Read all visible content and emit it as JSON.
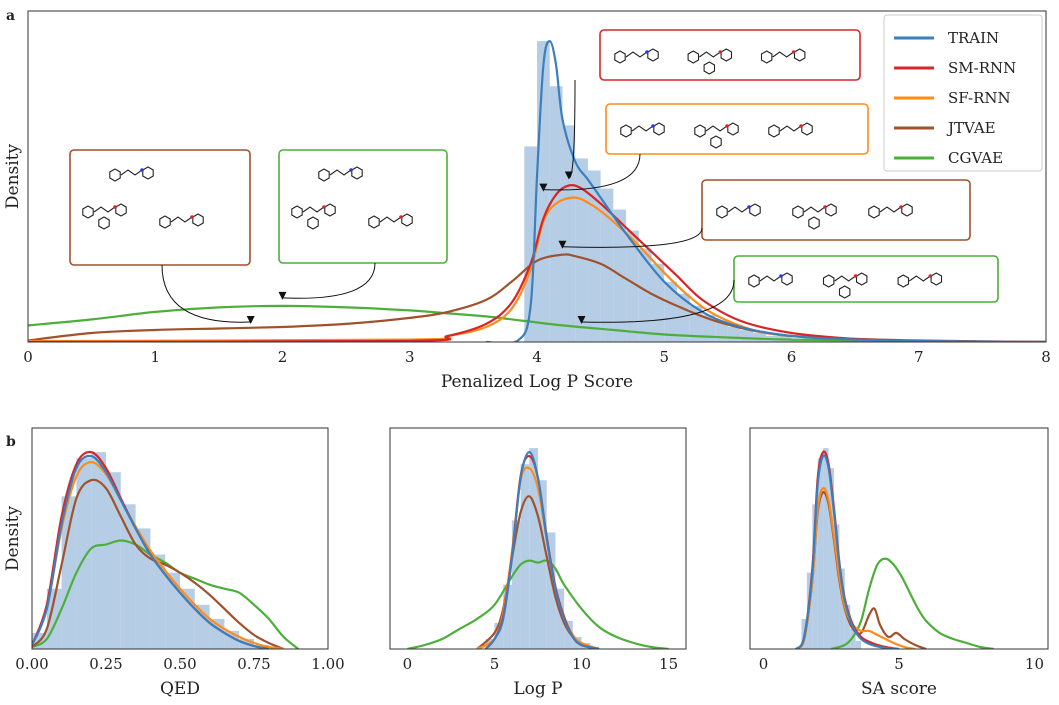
{
  "colors": {
    "TRAIN": "#3b7fbd",
    "SM-RNN": "#d62728",
    "SF-RNN": "#ff8c1a",
    "JTVAE": "#a0522d",
    "CGVAE": "#4caf3a",
    "hist": "#a9c4e2"
  },
  "panels": {
    "a": "a",
    "b": "b"
  },
  "legend": [
    {
      "name": "TRAIN",
      "color_key": "TRAIN"
    },
    {
      "name": "SM-RNN",
      "color_key": "SM-RNN"
    },
    {
      "name": "SF-RNN",
      "color_key": "SF-RNN"
    },
    {
      "name": "JTVAE",
      "color_key": "JTVAE"
    },
    {
      "name": "CGVAE",
      "color_key": "CGVAE"
    }
  ],
  "molecule_insets": [
    {
      "model": "SM-RNN",
      "color_key": "SM-RNN"
    },
    {
      "model": "SF-RNN",
      "color_key": "SF-RNN"
    },
    {
      "model": "JTVAE",
      "color_key": "JTVAE"
    },
    {
      "model": "CGVAE",
      "color_key": "CGVAE"
    },
    {
      "model": "JTVAE",
      "color_key": "JTVAE"
    },
    {
      "model": "CGVAE",
      "color_key": "CGVAE"
    }
  ],
  "chart_data": [
    {
      "id": "a",
      "type": "line",
      "xlabel": "Penalized Log P Score",
      "ylabel": "Density",
      "xlim": [
        0,
        8
      ],
      "ylim": [
        0,
        1.1
      ],
      "xticks": [
        0,
        1,
        2,
        3,
        4,
        5,
        6,
        7,
        8
      ],
      "show_yticks": false,
      "legend_position": "top-right",
      "histogram": {
        "bin_edges": [
          3.9,
          4.0,
          4.1,
          4.2,
          4.3,
          4.4,
          4.5,
          4.6,
          4.7,
          4.8,
          4.9,
          5.0,
          5.1,
          5.2,
          5.3,
          5.4,
          5.5,
          5.6,
          5.7,
          5.8,
          5.9,
          6.0,
          6.1,
          6.2,
          6.3,
          6.4,
          6.5
        ],
        "values": [
          0.65,
          1.0,
          0.85,
          0.72,
          0.61,
          0.57,
          0.51,
          0.44,
          0.37,
          0.31,
          0.26,
          0.2,
          0.16,
          0.12,
          0.09,
          0.07,
          0.05,
          0.04,
          0.03,
          0.02,
          0.02,
          0.01,
          0.01,
          0.01,
          0.01,
          0.01
        ]
      },
      "series": [
        {
          "name": "TRAIN",
          "x": [
            3.6,
            3.85,
            3.95,
            4.0,
            4.05,
            4.1,
            4.15,
            4.2,
            4.3,
            4.4,
            4.5,
            4.7,
            5.0,
            5.3,
            5.6,
            6.0,
            6.5,
            7.0,
            8.0
          ],
          "y": [
            0,
            0.005,
            0.12,
            0.55,
            0.92,
            1.0,
            0.92,
            0.74,
            0.6,
            0.54,
            0.48,
            0.36,
            0.2,
            0.1,
            0.05,
            0.02,
            0.008,
            0.003,
            0
          ]
        },
        {
          "name": "SM-RNN",
          "x": [
            0,
            3.0,
            3.3,
            3.6,
            3.8,
            3.95,
            4.05,
            4.15,
            4.25,
            4.35,
            4.5,
            4.7,
            4.9,
            5.1,
            5.3,
            5.6,
            6.0,
            6.5,
            7.0,
            8.0
          ],
          "y": [
            0,
            0.004,
            0.02,
            0.06,
            0.13,
            0.26,
            0.41,
            0.49,
            0.52,
            0.51,
            0.46,
            0.38,
            0.3,
            0.22,
            0.14,
            0.07,
            0.03,
            0.01,
            0.003,
            0
          ]
        },
        {
          "name": "SF-RNN",
          "x": [
            0,
            3.0,
            3.3,
            3.6,
            3.8,
            3.95,
            4.05,
            4.15,
            4.3,
            4.45,
            4.6,
            4.8,
            5.0,
            5.2,
            5.4,
            5.7,
            6.0,
            6.5,
            7.0,
            8.0
          ],
          "y": [
            0.003,
            0.008,
            0.02,
            0.05,
            0.11,
            0.24,
            0.4,
            0.46,
            0.48,
            0.45,
            0.4,
            0.32,
            0.23,
            0.15,
            0.09,
            0.04,
            0.02,
            0.008,
            0.003,
            0
          ]
        },
        {
          "name": "JTVAE",
          "x": [
            0,
            0.5,
            1.0,
            1.5,
            2.0,
            2.5,
            3.0,
            3.3,
            3.6,
            3.8,
            4.0,
            4.2,
            4.3,
            4.5,
            4.7,
            4.9,
            5.1,
            5.4,
            5.8,
            6.2,
            7.0,
            8.0
          ],
          "y": [
            0.005,
            0.03,
            0.04,
            0.045,
            0.05,
            0.06,
            0.08,
            0.1,
            0.14,
            0.2,
            0.27,
            0.29,
            0.285,
            0.26,
            0.21,
            0.16,
            0.12,
            0.07,
            0.03,
            0.015,
            0.005,
            0
          ]
        },
        {
          "name": "CGVAE",
          "x": [
            0,
            0.5,
            1.0,
            1.5,
            2.0,
            2.5,
            3.0,
            3.3,
            3.6,
            3.9,
            4.2,
            4.6,
            5.0,
            5.5,
            6.0,
            7.0,
            8.0
          ],
          "y": [
            0.055,
            0.075,
            0.1,
            0.115,
            0.12,
            0.115,
            0.105,
            0.095,
            0.085,
            0.07,
            0.055,
            0.04,
            0.025,
            0.015,
            0.008,
            0.003,
            0
          ]
        }
      ]
    },
    {
      "id": "b-qed",
      "type": "line",
      "xlabel": "QED",
      "ylabel": "Density",
      "xlim": [
        0,
        1
      ],
      "ylim": [
        0,
        1.1
      ],
      "xticks": [
        0,
        0.25,
        0.5,
        0.75,
        1.0
      ],
      "xtick_labels": [
        "0.00",
        "0.25",
        "0.50",
        "0.75",
        "1.00"
      ],
      "show_yticks": false,
      "histogram": {
        "bin_edges": [
          0.0,
          0.05,
          0.1,
          0.15,
          0.2,
          0.25,
          0.3,
          0.35,
          0.4,
          0.45,
          0.5,
          0.55,
          0.6,
          0.65,
          0.7,
          0.75,
          0.8
        ],
        "values": [
          0.08,
          0.3,
          0.76,
          0.95,
          0.98,
          0.88,
          0.72,
          0.6,
          0.47,
          0.38,
          0.3,
          0.22,
          0.15,
          0.09,
          0.05,
          0.02
        ]
      },
      "series": [
        {
          "name": "TRAIN",
          "x": [
            0,
            0.05,
            0.1,
            0.15,
            0.2,
            0.25,
            0.3,
            0.35,
            0.4,
            0.45,
            0.5,
            0.55,
            0.6,
            0.65,
            0.7,
            0.75,
            0.8
          ],
          "y": [
            0.02,
            0.2,
            0.62,
            0.9,
            0.96,
            0.88,
            0.74,
            0.6,
            0.47,
            0.37,
            0.28,
            0.2,
            0.13,
            0.08,
            0.04,
            0.015,
            0
          ]
        },
        {
          "name": "SM-RNN",
          "x": [
            0,
            0.05,
            0.1,
            0.15,
            0.2,
            0.25,
            0.3,
            0.35,
            0.4,
            0.45,
            0.5,
            0.55,
            0.6,
            0.65,
            0.7,
            0.75,
            0.8
          ],
          "y": [
            0.02,
            0.22,
            0.66,
            0.92,
            0.98,
            0.9,
            0.75,
            0.6,
            0.47,
            0.37,
            0.28,
            0.2,
            0.13,
            0.08,
            0.04,
            0.015,
            0
          ]
        },
        {
          "name": "SF-RNN",
          "x": [
            0,
            0.05,
            0.1,
            0.15,
            0.2,
            0.25,
            0.3,
            0.35,
            0.4,
            0.45,
            0.5,
            0.55,
            0.6,
            0.65,
            0.7,
            0.75,
            0.8,
            0.85
          ],
          "y": [
            0.02,
            0.2,
            0.6,
            0.86,
            0.93,
            0.87,
            0.74,
            0.61,
            0.49,
            0.39,
            0.3,
            0.22,
            0.15,
            0.1,
            0.06,
            0.03,
            0.01,
            0
          ]
        },
        {
          "name": "JTVAE",
          "x": [
            0,
            0.05,
            0.1,
            0.15,
            0.2,
            0.25,
            0.3,
            0.35,
            0.4,
            0.45,
            0.5,
            0.55,
            0.6,
            0.65,
            0.7,
            0.75,
            0.8,
            0.85
          ],
          "y": [
            0.01,
            0.1,
            0.42,
            0.75,
            0.84,
            0.8,
            0.66,
            0.52,
            0.45,
            0.42,
            0.38,
            0.33,
            0.27,
            0.2,
            0.13,
            0.07,
            0.03,
            0
          ]
        },
        {
          "name": "CGVAE",
          "x": [
            0,
            0.05,
            0.1,
            0.15,
            0.2,
            0.25,
            0.3,
            0.35,
            0.4,
            0.45,
            0.5,
            0.55,
            0.6,
            0.65,
            0.7,
            0.75,
            0.8,
            0.85,
            0.9
          ],
          "y": [
            0.01,
            0.05,
            0.2,
            0.38,
            0.5,
            0.52,
            0.54,
            0.52,
            0.47,
            0.43,
            0.38,
            0.35,
            0.32,
            0.3,
            0.28,
            0.22,
            0.15,
            0.06,
            0
          ]
        }
      ]
    },
    {
      "id": "b-logp",
      "type": "line",
      "xlabel": "Log P",
      "xlim": [
        -1,
        16
      ],
      "ylim": [
        0,
        1.1
      ],
      "xticks": [
        0,
        5,
        10,
        15
      ],
      "show_yticks": false,
      "histogram": {
        "bin_edges": [
          4.5,
          5.0,
          5.5,
          6.0,
          6.5,
          7.0,
          7.5,
          8.0,
          8.5,
          9.0,
          9.5,
          10.0,
          10.5,
          11.0
        ],
        "values": [
          0.05,
          0.13,
          0.32,
          0.64,
          0.92,
          1.0,
          0.84,
          0.58,
          0.3,
          0.14,
          0.06,
          0.03,
          0.01
        ]
      },
      "series": [
        {
          "name": "TRAIN",
          "x": [
            4.5,
            5.0,
            5.5,
            6.0,
            6.5,
            7.0,
            7.5,
            8.0,
            8.5,
            9.0,
            9.5,
            10.0,
            11.0
          ],
          "y": [
            0,
            0.05,
            0.15,
            0.45,
            0.85,
            0.98,
            0.85,
            0.55,
            0.3,
            0.15,
            0.06,
            0.02,
            0
          ]
        },
        {
          "name": "SM-RNN",
          "x": [
            4.5,
            5.0,
            5.5,
            6.0,
            6.5,
            7.0,
            7.5,
            8.0,
            8.5,
            9.0,
            9.5,
            10.0,
            11.0
          ],
          "y": [
            0,
            0.05,
            0.16,
            0.46,
            0.86,
            0.96,
            0.85,
            0.56,
            0.31,
            0.16,
            0.06,
            0.02,
            0
          ]
        },
        {
          "name": "SF-RNN",
          "x": [
            4.0,
            5.0,
            5.5,
            6.0,
            6.5,
            7.0,
            7.5,
            8.0,
            8.5,
            9.0,
            9.5,
            10.0,
            11.0
          ],
          "y": [
            0,
            0.05,
            0.18,
            0.48,
            0.84,
            0.9,
            0.8,
            0.55,
            0.3,
            0.16,
            0.07,
            0.03,
            0
          ]
        },
        {
          "name": "JTVAE",
          "x": [
            4.0,
            5.0,
            5.5,
            6.0,
            6.5,
            7.0,
            7.5,
            8.0,
            8.5,
            9.0,
            9.5,
            10.0,
            11.0
          ],
          "y": [
            0,
            0.08,
            0.2,
            0.45,
            0.68,
            0.76,
            0.66,
            0.46,
            0.26,
            0.13,
            0.06,
            0.02,
            0
          ]
        },
        {
          "name": "CGVAE",
          "x": [
            0,
            1,
            2,
            3,
            4,
            5,
            6,
            6.5,
            7,
            7.5,
            8,
            8.5,
            9,
            10,
            11,
            12,
            13,
            14,
            15
          ],
          "y": [
            0,
            0.02,
            0.05,
            0.1,
            0.15,
            0.22,
            0.36,
            0.42,
            0.44,
            0.43,
            0.44,
            0.4,
            0.32,
            0.2,
            0.11,
            0.06,
            0.03,
            0.01,
            0
          ]
        }
      ]
    },
    {
      "id": "b-sa",
      "type": "line",
      "xlabel": "SA score",
      "xlim": [
        -0.5,
        10.5
      ],
      "ylim": [
        0,
        1.1
      ],
      "xticks": [
        0,
        5,
        10
      ],
      "show_yticks": false,
      "histogram": {
        "bin_edges": [
          1.4,
          1.6,
          1.8,
          2.0,
          2.2,
          2.4,
          2.6,
          2.8,
          3.0,
          3.2,
          3.4,
          3.6
        ],
        "values": [
          0.15,
          0.38,
          0.72,
          0.95,
          1.0,
          0.9,
          0.62,
          0.4,
          0.22,
          0.1,
          0.04
        ]
      },
      "series": [
        {
          "name": "TRAIN",
          "x": [
            1.2,
            1.5,
            1.8,
            2.0,
            2.2,
            2.4,
            2.6,
            2.8,
            3.0,
            3.3,
            3.6,
            4.0,
            4.5,
            5.0
          ],
          "y": [
            0,
            0.06,
            0.38,
            0.82,
            0.96,
            0.9,
            0.68,
            0.42,
            0.24,
            0.11,
            0.05,
            0.02,
            0.005,
            0
          ]
        },
        {
          "name": "SM-RNN",
          "x": [
            1.2,
            1.5,
            1.8,
            2.0,
            2.2,
            2.4,
            2.6,
            2.8,
            3.0,
            3.3,
            3.6,
            4.0,
            4.5,
            5.0
          ],
          "y": [
            0,
            0.06,
            0.4,
            0.85,
            0.98,
            0.92,
            0.7,
            0.43,
            0.25,
            0.12,
            0.06,
            0.03,
            0.01,
            0
          ]
        },
        {
          "name": "SF-RNN",
          "x": [
            1.2,
            1.5,
            1.8,
            2.0,
            2.2,
            2.4,
            2.6,
            2.8,
            3.0,
            3.3,
            3.6,
            3.9,
            4.2,
            4.5,
            4.8,
            5.2,
            5.6
          ],
          "y": [
            0,
            0.05,
            0.34,
            0.7,
            0.8,
            0.74,
            0.56,
            0.36,
            0.21,
            0.12,
            0.09,
            0.09,
            0.07,
            0.05,
            0.03,
            0.01,
            0
          ]
        },
        {
          "name": "JTVAE",
          "x": [
            1.2,
            1.5,
            1.8,
            2.0,
            2.2,
            2.4,
            2.6,
            2.8,
            3.0,
            3.3,
            3.6,
            3.9,
            4.1,
            4.3,
            4.6,
            4.9,
            5.2,
            5.6,
            6.0
          ],
          "y": [
            0,
            0.05,
            0.34,
            0.68,
            0.78,
            0.72,
            0.54,
            0.34,
            0.2,
            0.1,
            0.08,
            0.17,
            0.2,
            0.12,
            0.06,
            0.08,
            0.05,
            0.02,
            0
          ]
        },
        {
          "name": "CGVAE",
          "x": [
            2.5,
            3.0,
            3.3,
            3.6,
            3.9,
            4.2,
            4.5,
            4.8,
            5.1,
            5.4,
            5.7,
            6.0,
            6.5,
            7.0,
            7.5,
            8.0,
            8.5
          ],
          "y": [
            0,
            0.02,
            0.06,
            0.14,
            0.3,
            0.42,
            0.45,
            0.42,
            0.36,
            0.28,
            0.2,
            0.14,
            0.08,
            0.05,
            0.03,
            0.01,
            0
          ]
        }
      ]
    }
  ]
}
